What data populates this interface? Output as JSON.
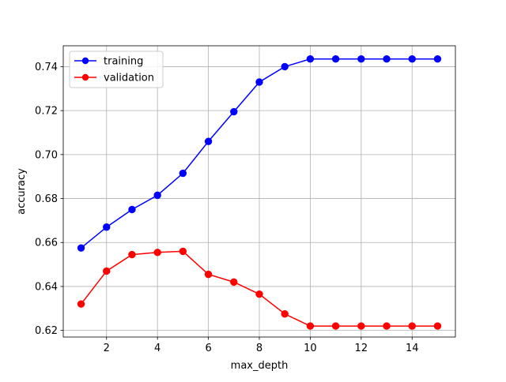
{
  "colors": {
    "training": "#0000ff",
    "validation": "#ff0000",
    "grid": "#b0b0b0",
    "axes": "#000000",
    "legend_border": "#cccccc"
  },
  "chart_data": {
    "type": "line",
    "title": "",
    "xlabel": "max_depth",
    "ylabel": "accuracy",
    "xlim": [
      0.3,
      15.7
    ],
    "ylim": [
      0.617,
      0.7495
    ],
    "xticks": [
      2,
      4,
      6,
      8,
      10,
      12,
      14
    ],
    "xtick_labels": [
      "2",
      "4",
      "6",
      "8",
      "10",
      "12",
      "14"
    ],
    "yticks": [
      0.62,
      0.64,
      0.66,
      0.68,
      0.7,
      0.72,
      0.74
    ],
    "ytick_labels": [
      "0.62",
      "0.64",
      "0.66",
      "0.68",
      "0.70",
      "0.72",
      "0.74"
    ],
    "grid": true,
    "legend_position": "upper left",
    "x": [
      1,
      2,
      3,
      4,
      5,
      6,
      7,
      8,
      9,
      10,
      11,
      12,
      13,
      14,
      15
    ],
    "series": [
      {
        "name": "training",
        "color": "#0000ff",
        "marker": "circle",
        "values": [
          0.6575,
          0.667,
          0.675,
          0.6815,
          0.6915,
          0.706,
          0.7195,
          0.733,
          0.74,
          0.7435,
          0.7435,
          0.7435,
          0.7435,
          0.7435,
          0.7435
        ]
      },
      {
        "name": "validation",
        "color": "#ff0000",
        "marker": "circle",
        "values": [
          0.632,
          0.647,
          0.6545,
          0.6555,
          0.656,
          0.6455,
          0.642,
          0.6365,
          0.6275,
          0.622,
          0.622,
          0.622,
          0.622,
          0.622,
          0.622
        ]
      }
    ]
  }
}
